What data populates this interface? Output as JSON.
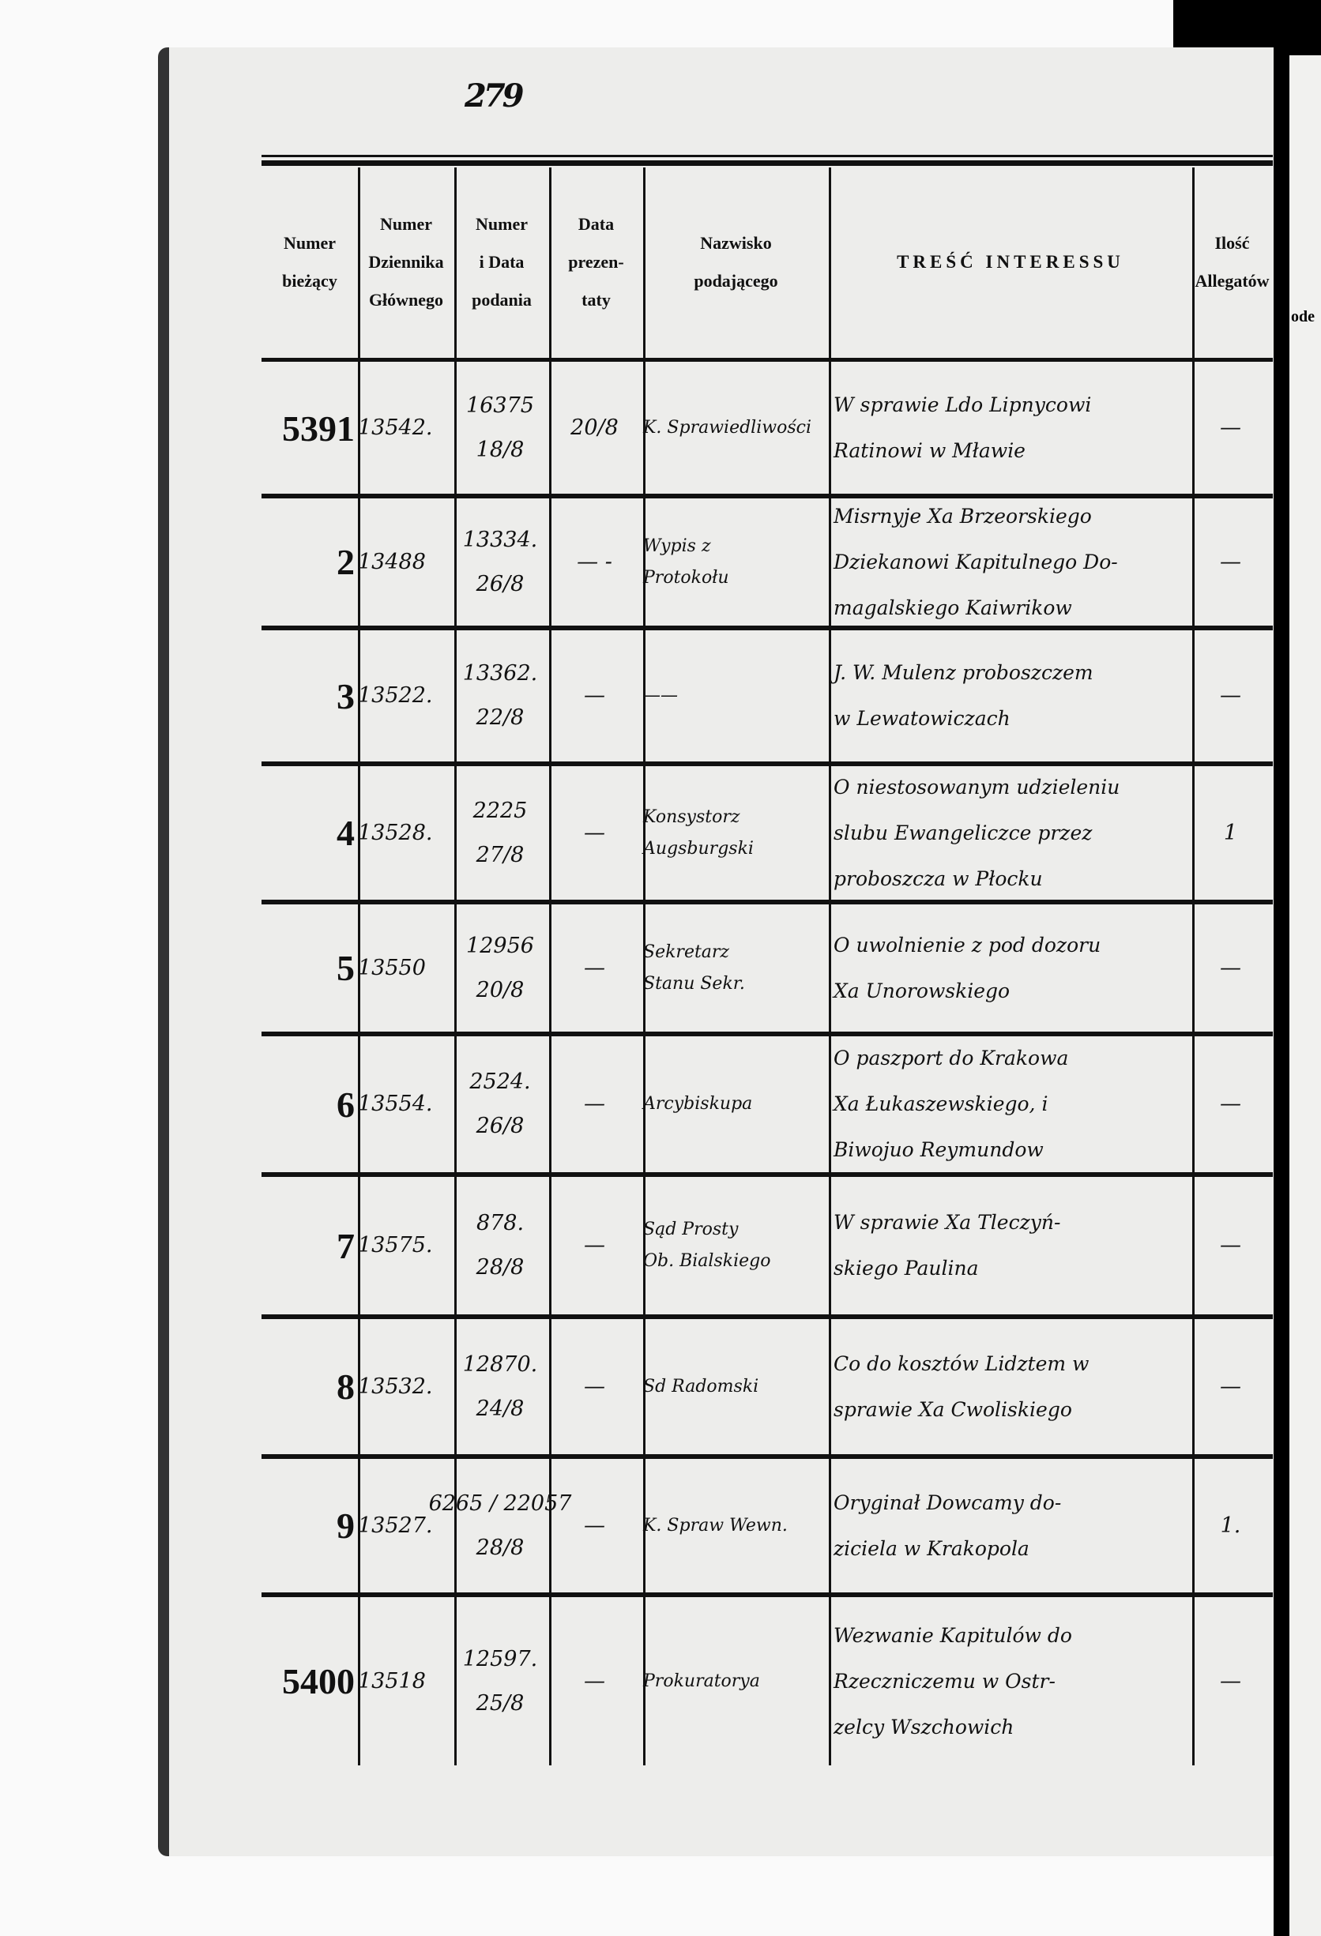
{
  "page_number": "279",
  "header": {
    "col1": [
      "Numer",
      "bieżący"
    ],
    "col2": [
      "Numer",
      "Dziennika",
      "Głównego"
    ],
    "col3": [
      "Numer",
      "i Data",
      "podania"
    ],
    "col4": [
      "Data",
      "prezen-",
      "taty"
    ],
    "col5": [
      "Nazwisko",
      "podającego"
    ],
    "col6": "TREŚĆ INTERESSU",
    "col7": [
      "Ilość",
      "Allegatów"
    ],
    "col8_partial": "ode"
  },
  "rows": [
    {
      "numer": "5391",
      "dziennik": "13542.",
      "podanie_nr": "16375",
      "podanie_data": "18/8",
      "prezentata": "20/8",
      "nazwisko": [
        "K. Sprawiedliwości"
      ],
      "tresc": [
        "W sprawie Ldo Lipnycowi",
        "Ratinowi w Mławie"
      ],
      "allegata": "—"
    },
    {
      "numer": "2",
      "dziennik": "13488",
      "podanie_nr": "13334.",
      "podanie_data": "26/8",
      "prezentata": "— -",
      "nazwisko": [
        "Wypis z",
        "Protokołu"
      ],
      "tresc": [
        "Misrnyje Xa Brzeorskiego",
        "Dziekanowi Kapitulnego Do-",
        "magalskiego Kaiwrikow"
      ],
      "allegata": "—"
    },
    {
      "numer": "3",
      "dziennik": "13522.",
      "podanie_nr": "13362.",
      "podanie_data": "22/8",
      "prezentata": "—",
      "nazwisko": [
        "——"
      ],
      "tresc": [
        "J. W. Mulenz proboszczem",
        "w Lewatowiczach"
      ],
      "allegata": "—"
    },
    {
      "numer": "4",
      "dziennik": "13528.",
      "podanie_nr": "2225",
      "podanie_data": "27/8",
      "prezentata": "—",
      "nazwisko": [
        "Konsystorz",
        "Augsburgski"
      ],
      "tresc": [
        "O niestosowanym udzieleniu",
        "slubu Ewangeliczce przez",
        "proboszcza w Płocku"
      ],
      "allegata": "1"
    },
    {
      "numer": "5",
      "dziennik": "13550",
      "podanie_nr": "12956",
      "podanie_data": "20/8",
      "prezentata": "—",
      "nazwisko": [
        "Sekretarz",
        "Stanu Sekr."
      ],
      "tresc": [
        "O uwolnienie z pod dozoru",
        "Xa Unorowskiego"
      ],
      "allegata": "—"
    },
    {
      "numer": "6",
      "dziennik": "13554.",
      "podanie_nr": "2524.",
      "podanie_data": "26/8",
      "prezentata": "—",
      "nazwisko": [
        "Arcybiskupa"
      ],
      "tresc": [
        "O paszport do Krakowa",
        "Xa Łukaszewskiego, i",
        "Biwojuo Reymundow"
      ],
      "allegata": "—"
    },
    {
      "numer": "7",
      "dziennik": "13575.",
      "podanie_nr": "878.",
      "podanie_data": "28/8",
      "prezentata": "—",
      "nazwisko": [
        "Sąd Prosty",
        "Ob. Bialskiego"
      ],
      "tresc": [
        "W sprawie Xa Tleczyń-",
        "skiego Paulina"
      ],
      "allegata": "—"
    },
    {
      "numer": "8",
      "dziennik": "13532.",
      "podanie_nr": "12870.",
      "podanie_data": "24/8",
      "prezentata": "—",
      "nazwisko": [
        "Sd Radomski"
      ],
      "tresc": [
        "Co do kosztów Lidztem w",
        "sprawie Xa Cwoliskiego"
      ],
      "allegata": "—"
    },
    {
      "numer": "9",
      "dziennik": "13527.",
      "podanie_nr": "6265 / 22057",
      "podanie_data": "28/8",
      "prezentata": "—",
      "nazwisko": [
        "K. Spraw Wewn."
      ],
      "tresc": [
        "Oryginał Dowcamy do-",
        "ziciela w Krakopola"
      ],
      "allegata": "1."
    },
    {
      "numer": "5400",
      "dziennik": "13518",
      "podanie_nr": "12597.",
      "podanie_data": "25/8",
      "prezentata": "—",
      "nazwisko": [
        "Prokuratorya"
      ],
      "tresc": [
        "Wezwanie Kapitulów do",
        "Rzeczniczemu w Ostr-",
        "zelcy Wszchowich"
      ],
      "allegata": "—"
    }
  ]
}
